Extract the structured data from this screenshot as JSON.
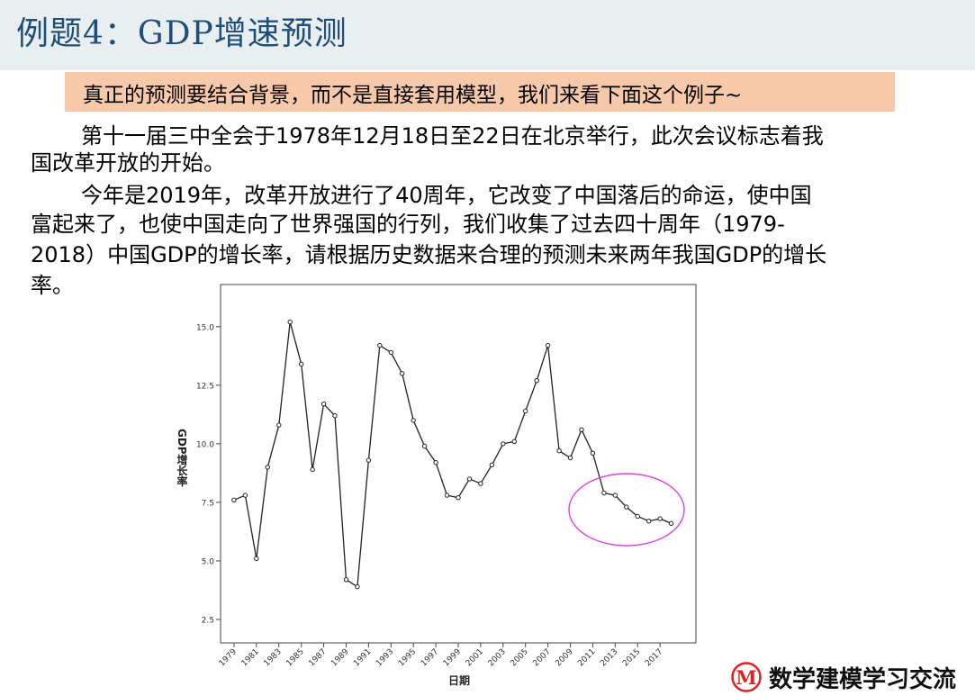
{
  "slide": {
    "title": "例题4：GDP增速预测",
    "highlight": "真正的预测要结合背景，而不是直接套用模型，我们来看下面这个例子~",
    "paragraph_lines": [
      "第十一届三中全会于1978年12月18日至22日在北京举行，此次会议标志着我",
      "国改革开放的开始。",
      "今年是2019年，改革开放进行了40周年，它改变了中国落后的命运，使中国",
      "富起来了，也使中国走向了世界强国的行列，我们收集了过去四十周年（1979-",
      "2018）中国GDP的增长率，请根据历史数据来合理的预测未来两年我国GDP的增长",
      "率。"
    ],
    "logo_text": "数学建模学习交流",
    "logo_letter": "M"
  },
  "chart_data": {
    "type": "line",
    "xlabel": "日期",
    "ylabel": "GDP增长率",
    "x": [
      1979,
      1980,
      1981,
      1982,
      1983,
      1984,
      1985,
      1986,
      1987,
      1988,
      1989,
      1990,
      1991,
      1992,
      1993,
      1994,
      1995,
      1996,
      1997,
      1998,
      1999,
      2000,
      2001,
      2002,
      2003,
      2004,
      2005,
      2006,
      2007,
      2008,
      2009,
      2010,
      2011,
      2012,
      2013,
      2014,
      2015,
      2016,
      2017,
      2018
    ],
    "series": [
      {
        "values": [
          7.6,
          7.8,
          5.1,
          9.0,
          10.8,
          15.2,
          13.4,
          8.9,
          11.7,
          11.2,
          4.2,
          3.9,
          9.3,
          14.2,
          13.9,
          13.0,
          11.0,
          9.9,
          9.2,
          7.8,
          7.7,
          8.5,
          8.3,
          9.1,
          10.0,
          10.1,
          11.4,
          12.7,
          14.2,
          9.7,
          9.4,
          10.6,
          9.6,
          7.9,
          7.8,
          7.3,
          6.9,
          6.7,
          6.8,
          6.6
        ]
      }
    ],
    "x_ticks": [
      "1979",
      "1981",
      "1983",
      "1985",
      "1987",
      "1989",
      "1991",
      "1993",
      "1995",
      "1997",
      "1999",
      "2001",
      "2003",
      "2005",
      "2007",
      "2009",
      "2011",
      "2013",
      "2015",
      "2017"
    ],
    "y_ticks": [
      "2.5",
      "5.0",
      "7.5",
      "10.0",
      "12.5",
      "15.0"
    ],
    "ylim": [
      1.5,
      16.8
    ],
    "grid": false,
    "line_color": "#222222",
    "highlight_color": "#e040e0"
  }
}
